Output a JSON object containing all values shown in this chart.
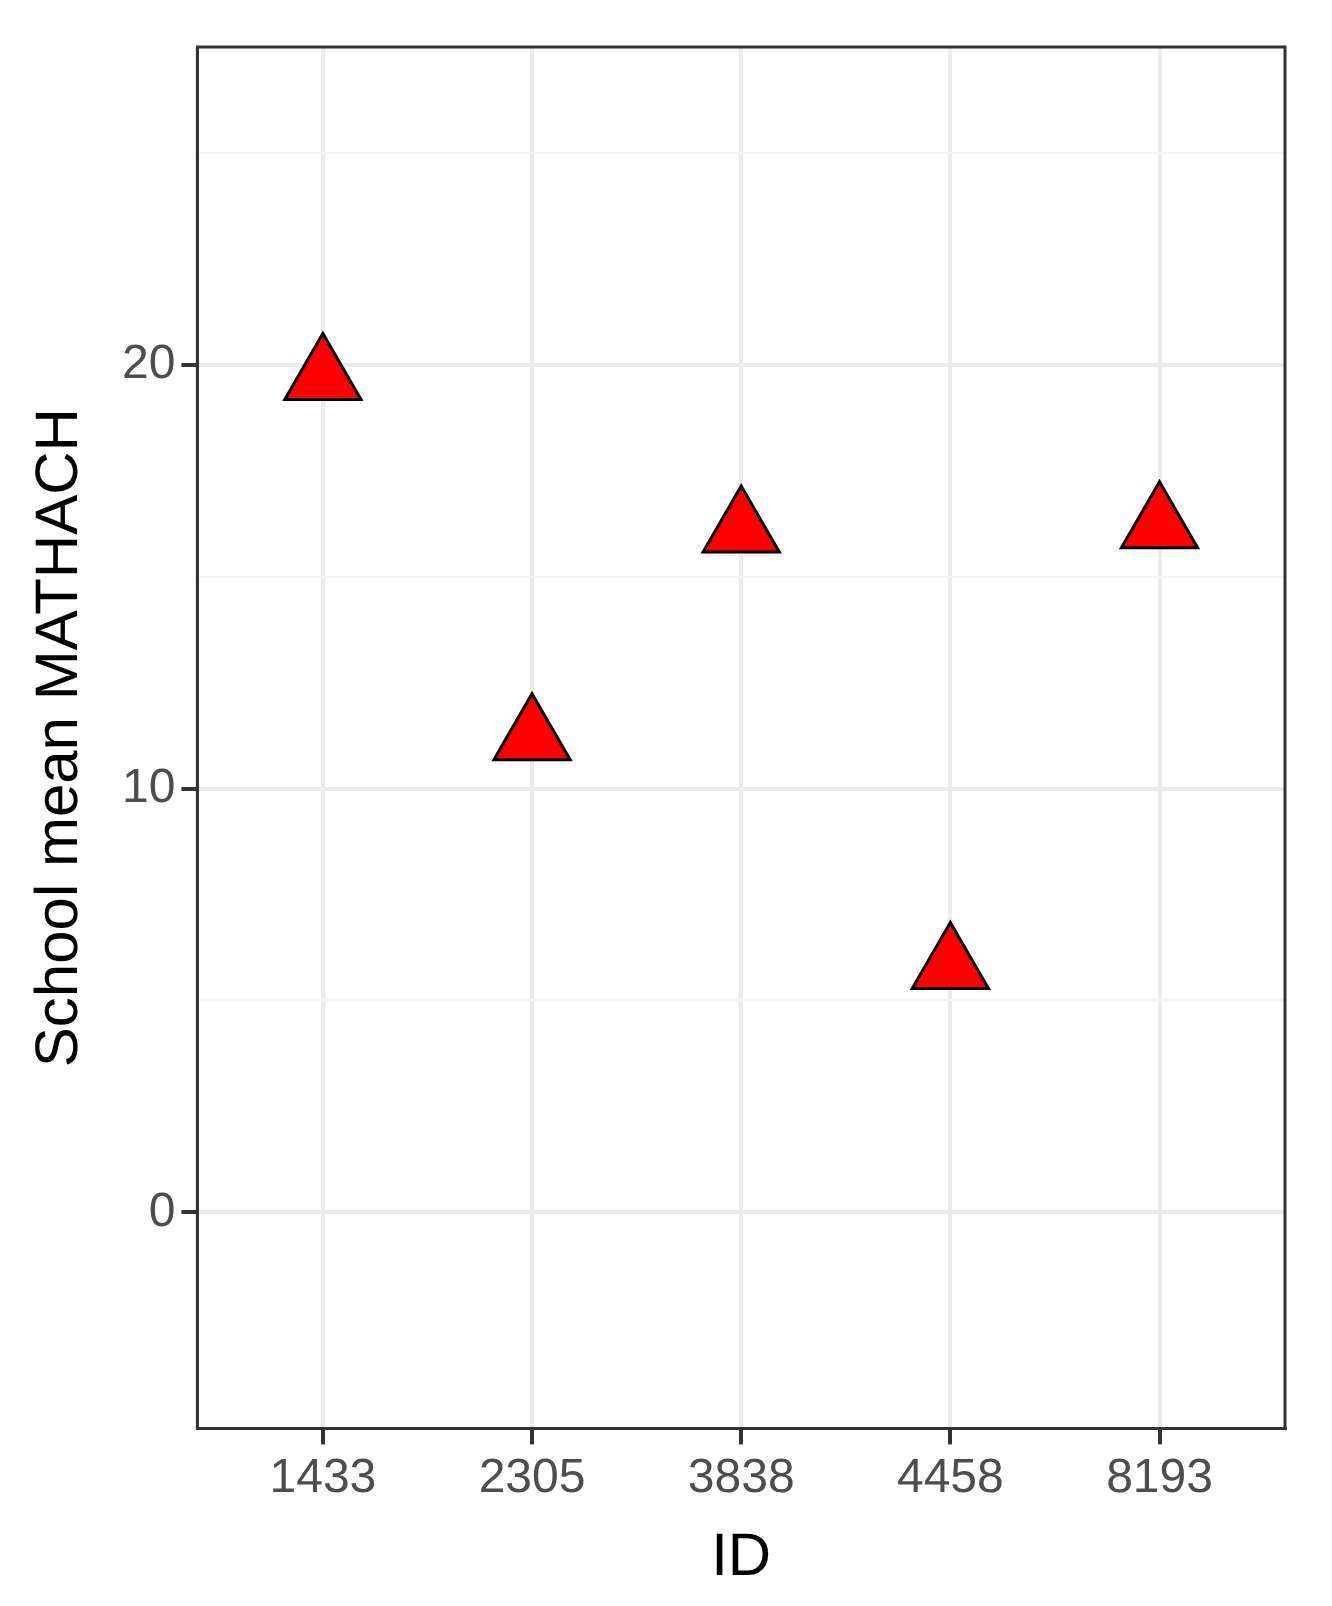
{
  "chart_data": {
    "type": "scatter",
    "xlabel": "ID",
    "ylabel": "School mean MATHACH",
    "categories": [
      "1433",
      "2305",
      "3838",
      "4458",
      "8193"
    ],
    "values": [
      19.7,
      11.2,
      16.1,
      5.8,
      16.2
    ],
    "color": "#ff0000",
    "marker": "triangle",
    "ylim": [
      -5.1,
      27.5
    ],
    "yticks": [
      0,
      {
        "value": 5,
        "label": null
      },
      10,
      {
        "value": 15,
        "label": null
      },
      20,
      {
        "value": 25,
        "label": null
      }
    ],
    "grid": true
  }
}
